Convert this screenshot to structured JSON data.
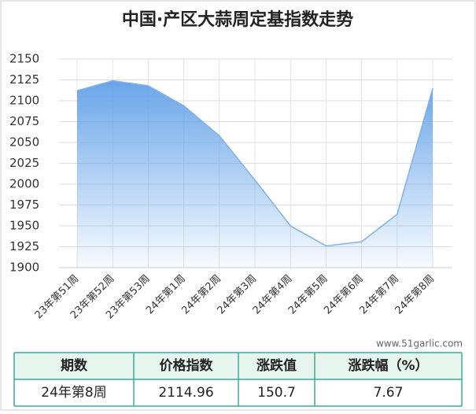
{
  "chart_data": {
    "type": "area",
    "title": "中国·产区大蒜周定基指数走势",
    "categories": [
      "23年第51周",
      "23年第52周",
      "23年第53周",
      "24年第1周",
      "24年第2周",
      "24年第3周",
      "24年第4周",
      "24年第5周",
      "24年第6周",
      "24年第7周",
      "24年第8周"
    ],
    "series": [
      {
        "name": "价格指数",
        "color": "#7fb2ea",
        "values": [
          2112,
          2124,
          2118,
          2094,
          2058,
          2005,
          1950,
          1926,
          1931,
          1964,
          2114.96
        ]
      }
    ],
    "ylim": [
      1900,
      2150
    ],
    "yticks": [
      1900,
      1925,
      1950,
      1975,
      2000,
      2025,
      2050,
      2075,
      2100,
      2125,
      2150
    ],
    "grid": true
  },
  "watermark": "www.51garlic.com",
  "table": {
    "header": [
      "期数",
      "价格指数",
      "涨跌值",
      "涨跌幅（%）"
    ],
    "rows": [
      [
        "24年第8周",
        "2114.96",
        "150.7",
        "7.67"
      ]
    ]
  }
}
